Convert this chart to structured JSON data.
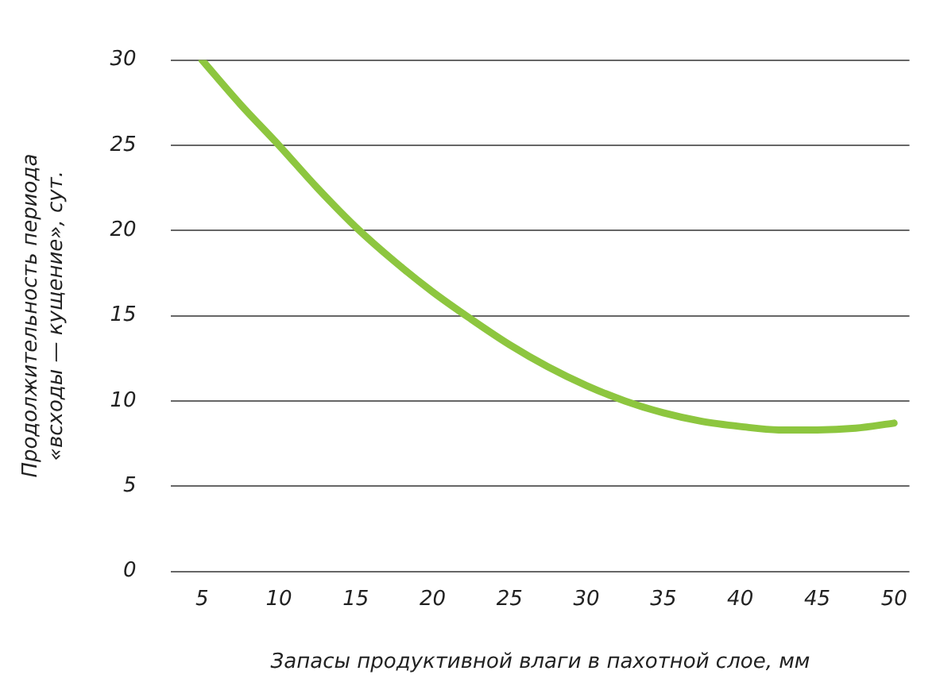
{
  "chart_data": {
    "type": "line",
    "xlabel": "Запасы продуктивной влаги в пахотной слое, мм",
    "ylabel": "Продолжительность периода\n«всходы — кущение», сут.",
    "x": [
      5,
      7.5,
      10,
      12.5,
      15,
      17.5,
      20,
      22.5,
      25,
      27.5,
      30,
      32.5,
      35,
      37.5,
      40,
      42.5,
      45,
      47.5,
      50
    ],
    "series": [
      {
        "color": "#8dc63f",
        "values": [
          30,
          27.4,
          25,
          22.5,
          20.2,
          18.2,
          16.4,
          14.8,
          13.3,
          12,
          10.9,
          10,
          9.3,
          8.8,
          8.5,
          8.3,
          8.3,
          8.4,
          8.7
        ]
      }
    ],
    "xlim": [
      3,
      51
    ],
    "xticks": [
      5,
      10,
      15,
      20,
      25,
      30,
      35,
      40,
      45,
      50
    ],
    "ylim": [
      0,
      30
    ],
    "yticks": [
      0,
      5,
      10,
      15,
      20,
      25,
      30
    ],
    "grid": "y",
    "legend": false,
    "marker": "none",
    "line_style": "solid"
  }
}
